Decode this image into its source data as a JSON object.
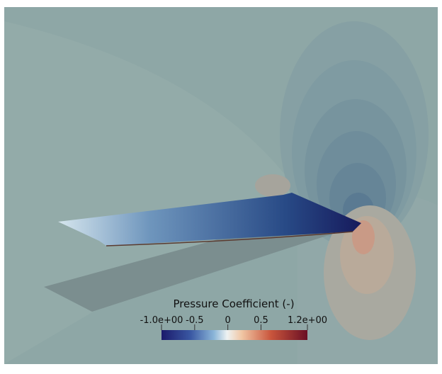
{
  "colorbar": {
    "title": "Pressure Coefficient (-)",
    "range": [
      -1,
      1.2
    ],
    "ticks": [
      {
        "value": -1,
        "label": "-1.0e+00"
      },
      -0.5,
      0,
      0.5,
      {
        "value": 1.2,
        "label": "1.2e+00"
      }
    ]
  }
}
